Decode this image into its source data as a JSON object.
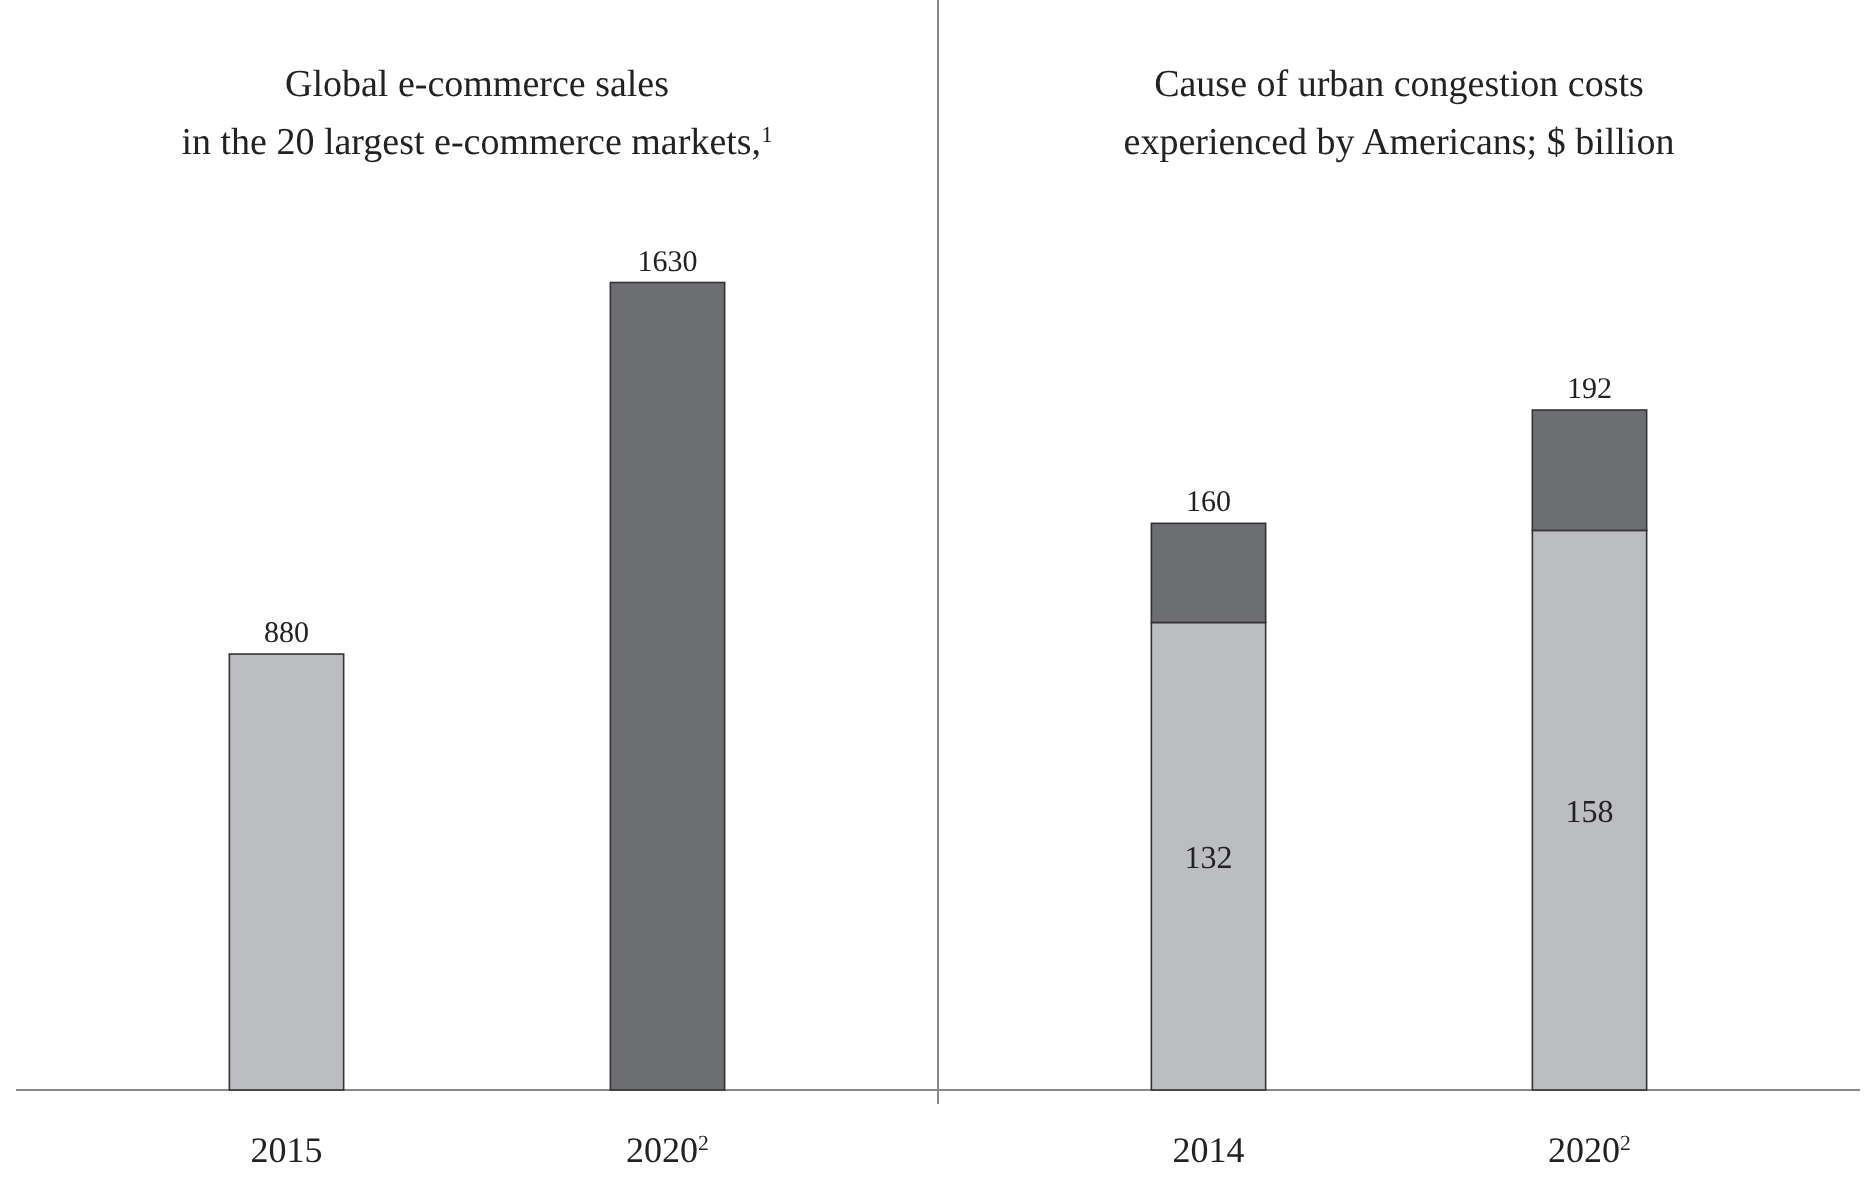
{
  "chart_data": [
    {
      "type": "bar",
      "title": "Global e-commerce sales\nin the 20 largest e-commerce markets,$^{1}$",
      "categories": [
        "2015",
        "2020$^{2}$"
      ],
      "values": [
        880,
        1630
      ],
      "colors": [
        "#bcbdc0",
        "#6d6e71"
      ],
      "data_labels": true
    },
    {
      "type": "bar",
      "title": "Cause of urban congestion costs\nexperienced by Americans; $ billion",
      "categories": [
        "2014",
        "2020$^{2}$"
      ],
      "stacked": true,
      "series": [
        {
          "color": "#bcbdc0",
          "values": [
            132,
            158
          ],
          "value_labels": [
            "132",
            "158"
          ]
        },
        {
          "color": "#6d6e71",
          "values": [
            28,
            34
          ]
        }
      ],
      "totals": [
        "160",
        "192"
      ]
    }
  ]
}
